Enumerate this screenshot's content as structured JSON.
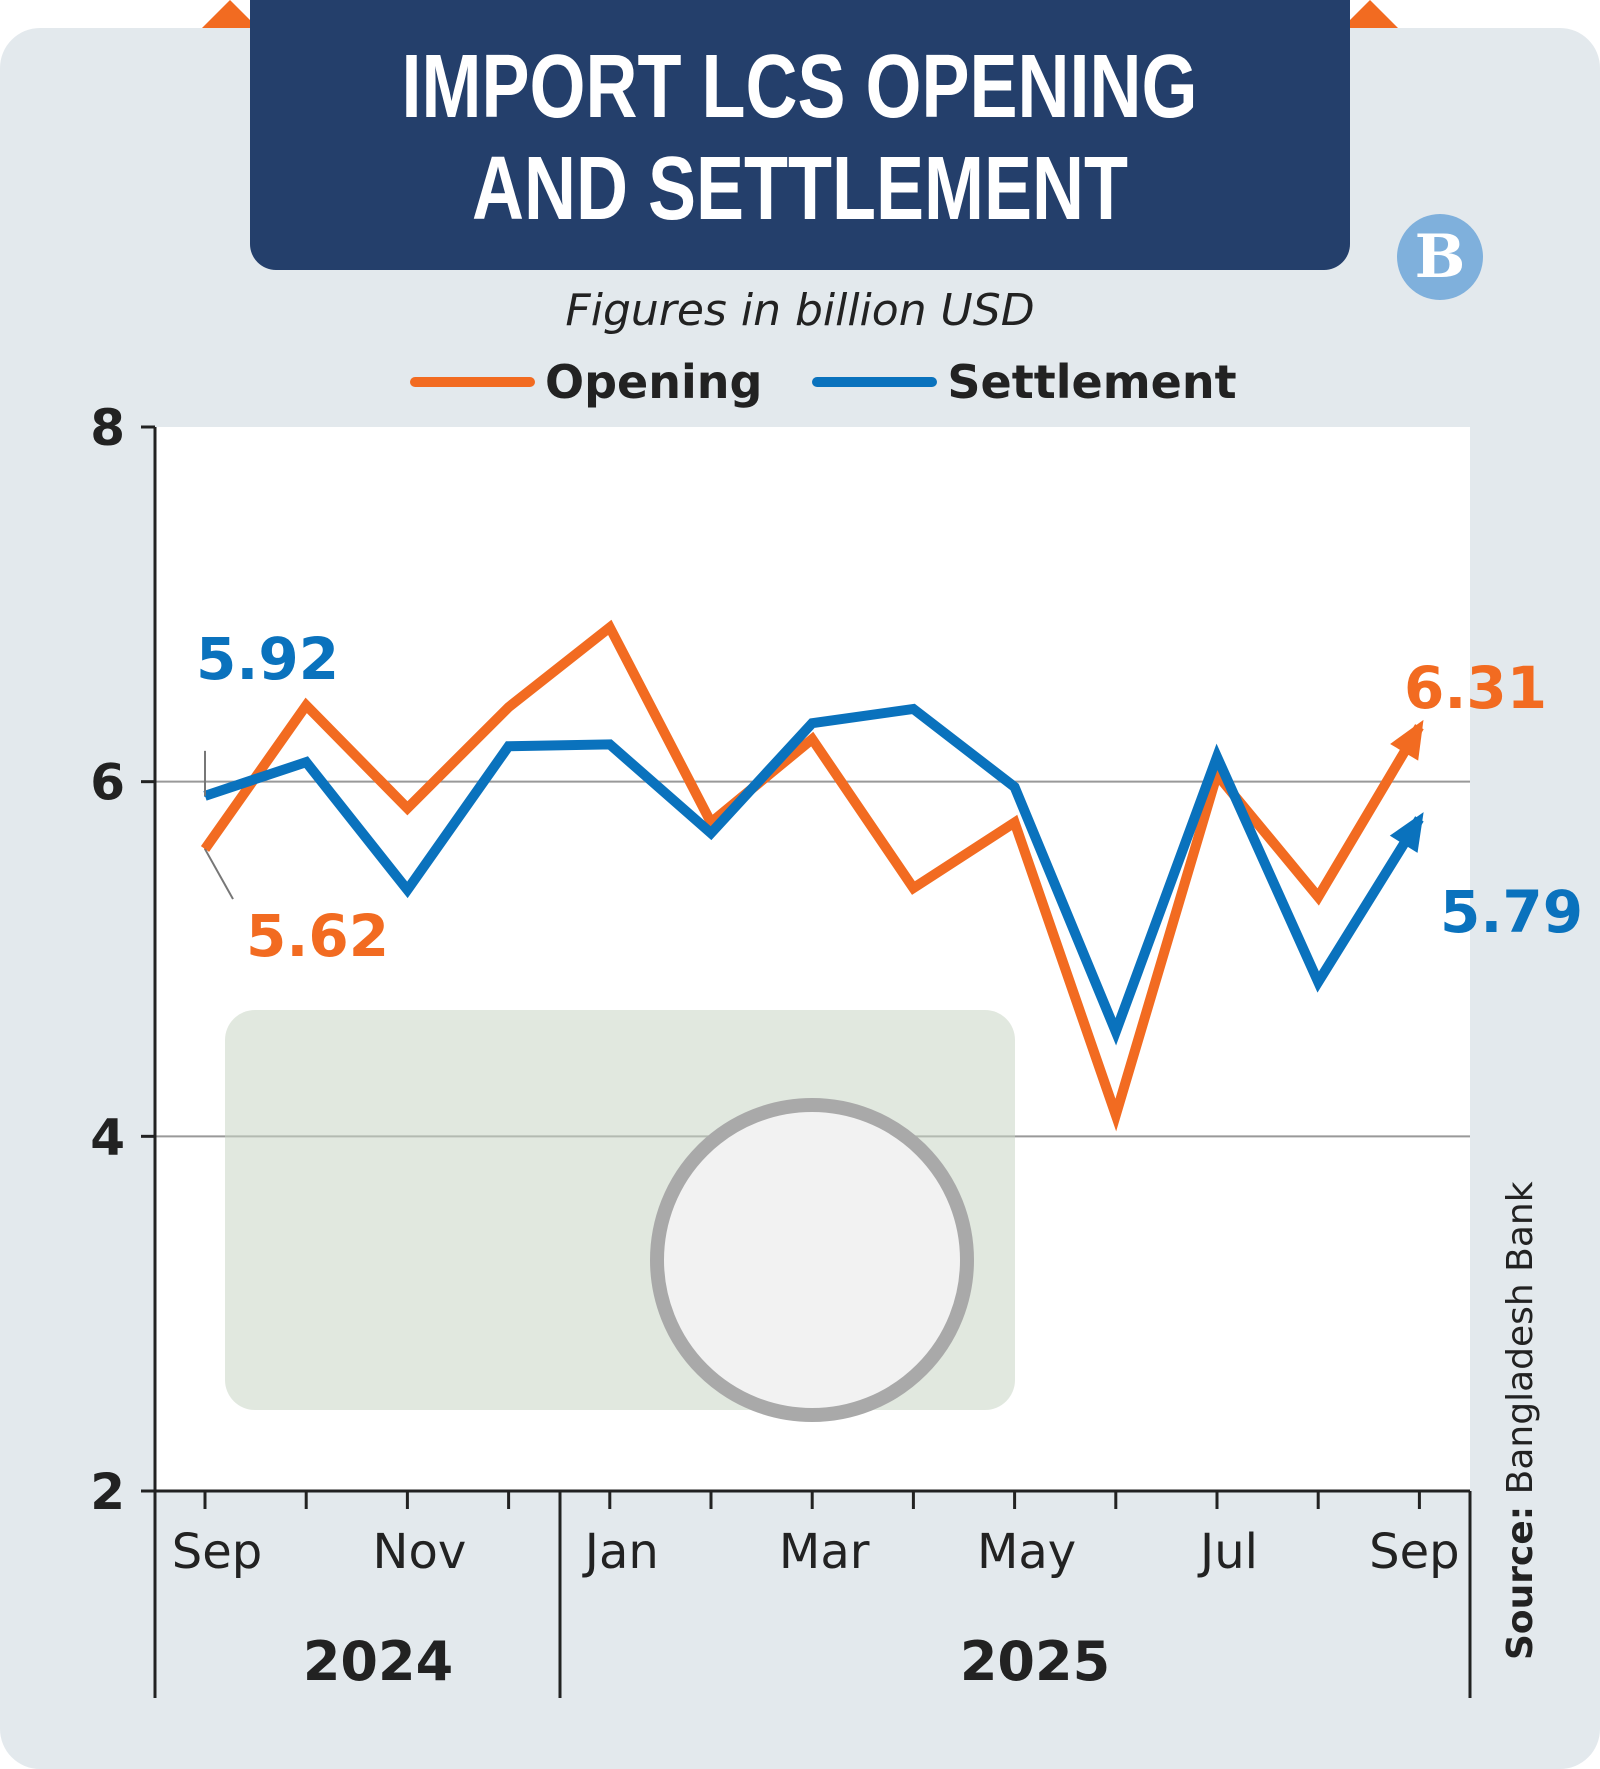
{
  "title_line1": "IMPORT LCS OPENING",
  "title_line2": "AND SETTLEMENT",
  "logo_text": "TBS",
  "subtitle": "Figures in billion USD",
  "source_label": "Source:",
  "source_value": "Bangladesh Bank",
  "colors": {
    "opening": "#f26b21",
    "settlement": "#0a72bd",
    "banner": "#243f6b",
    "background": "#e3e9ed"
  },
  "chart_data": {
    "type": "line",
    "title": "IMPORT LCS OPENING AND SETTLEMENT",
    "ylabel": "Figures in billion USD",
    "ylim": [
      2,
      8
    ],
    "yticks": [
      "2",
      "4",
      "6",
      "8"
    ],
    "grid": true,
    "legend": "top-center",
    "x": [
      "Sep 2024",
      "Oct 2024",
      "Nov 2024",
      "Dec 2024",
      "Jan 2025",
      "Feb 2025",
      "Mar 2025",
      "Apr 2025",
      "May 2025",
      "Jun 2025",
      "Jul 2025",
      "Aug 2025",
      "Sep 2025"
    ],
    "xtick_labels": [
      "Sep",
      "",
      "Nov",
      "",
      "Jan",
      "",
      "Mar",
      "",
      "May",
      "",
      "Jul",
      "",
      "Sep"
    ],
    "year_labels": [
      "2024",
      "2025"
    ],
    "series": [
      {
        "name": "Opening",
        "values": [
          5.62,
          6.43,
          5.85,
          6.42,
          6.87,
          5.77,
          6.24,
          5.4,
          5.77,
          4.12,
          6.04,
          5.35,
          6.31
        ]
      },
      {
        "name": "Settlement",
        "values": [
          5.92,
          6.11,
          5.39,
          6.2,
          6.21,
          5.71,
          6.33,
          6.41,
          5.97,
          4.59,
          6.14,
          4.87,
          5.79
        ]
      }
    ],
    "annotations": {
      "opening_start": "5.62",
      "opening_end": "6.31",
      "settlement_start": "5.92",
      "settlement_end": "5.79"
    }
  }
}
